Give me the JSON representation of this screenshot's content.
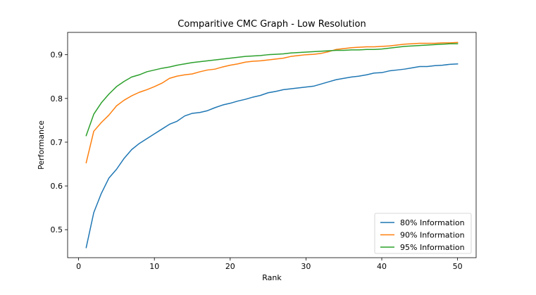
{
  "chart_data": {
    "type": "line",
    "title": "Comparitive CMC Graph - Low Resolution",
    "xlabel": "Rank",
    "ylabel": "Performance",
    "xlim": [
      -1.45,
      52.45
    ],
    "ylim": [
      0.436,
      0.951
    ],
    "xticks": [
      0,
      10,
      20,
      30,
      40,
      50
    ],
    "yticks": [
      0.5,
      0.6,
      0.7,
      0.8,
      0.9
    ],
    "ytick_labels": [
      "0.5",
      "0.6",
      "0.7",
      "0.8",
      "0.9"
    ],
    "grid": false,
    "legend_position": "lower-right",
    "x": [
      1,
      2,
      3,
      4,
      5,
      6,
      7,
      8,
      9,
      10,
      11,
      12,
      13,
      14,
      15,
      16,
      17,
      18,
      19,
      20,
      21,
      22,
      23,
      24,
      25,
      26,
      27,
      28,
      29,
      30,
      31,
      32,
      33,
      34,
      35,
      36,
      37,
      38,
      39,
      40,
      41,
      42,
      43,
      44,
      45,
      46,
      47,
      48,
      49,
      50
    ],
    "series": [
      {
        "name": "80% Information",
        "color": "#1f77b4",
        "values": [
          0.459,
          0.539,
          0.583,
          0.618,
          0.638,
          0.663,
          0.683,
          0.697,
          0.708,
          0.719,
          0.73,
          0.741,
          0.748,
          0.76,
          0.766,
          0.768,
          0.772,
          0.779,
          0.785,
          0.789,
          0.794,
          0.798,
          0.803,
          0.807,
          0.813,
          0.816,
          0.82,
          0.822,
          0.824,
          0.826,
          0.828,
          0.833,
          0.838,
          0.843,
          0.846,
          0.849,
          0.851,
          0.854,
          0.858,
          0.859,
          0.863,
          0.865,
          0.867,
          0.87,
          0.873,
          0.873,
          0.875,
          0.876,
          0.878,
          0.879
        ]
      },
      {
        "name": "90% Information",
        "color": "#ff7f0e",
        "values": [
          0.653,
          0.725,
          0.745,
          0.762,
          0.783,
          0.796,
          0.806,
          0.814,
          0.82,
          0.827,
          0.835,
          0.846,
          0.851,
          0.854,
          0.856,
          0.861,
          0.865,
          0.867,
          0.872,
          0.876,
          0.879,
          0.883,
          0.885,
          0.886,
          0.888,
          0.89,
          0.892,
          0.896,
          0.898,
          0.9,
          0.901,
          0.903,
          0.907,
          0.912,
          0.914,
          0.916,
          0.917,
          0.918,
          0.918,
          0.919,
          0.92,
          0.922,
          0.924,
          0.925,
          0.926,
          0.926,
          0.926,
          0.927,
          0.927,
          0.928
        ]
      },
      {
        "name": "95% Information",
        "color": "#2ca02c",
        "values": [
          0.715,
          0.764,
          0.79,
          0.81,
          0.827,
          0.839,
          0.849,
          0.854,
          0.861,
          0.865,
          0.869,
          0.872,
          0.876,
          0.879,
          0.882,
          0.884,
          0.886,
          0.888,
          0.89,
          0.892,
          0.894,
          0.896,
          0.897,
          0.898,
          0.9,
          0.901,
          0.902,
          0.904,
          0.905,
          0.906,
          0.907,
          0.908,
          0.909,
          0.91,
          0.91,
          0.911,
          0.911,
          0.912,
          0.912,
          0.913,
          0.915,
          0.917,
          0.919,
          0.92,
          0.921,
          0.922,
          0.923,
          0.924,
          0.925,
          0.925
        ]
      }
    ]
  }
}
